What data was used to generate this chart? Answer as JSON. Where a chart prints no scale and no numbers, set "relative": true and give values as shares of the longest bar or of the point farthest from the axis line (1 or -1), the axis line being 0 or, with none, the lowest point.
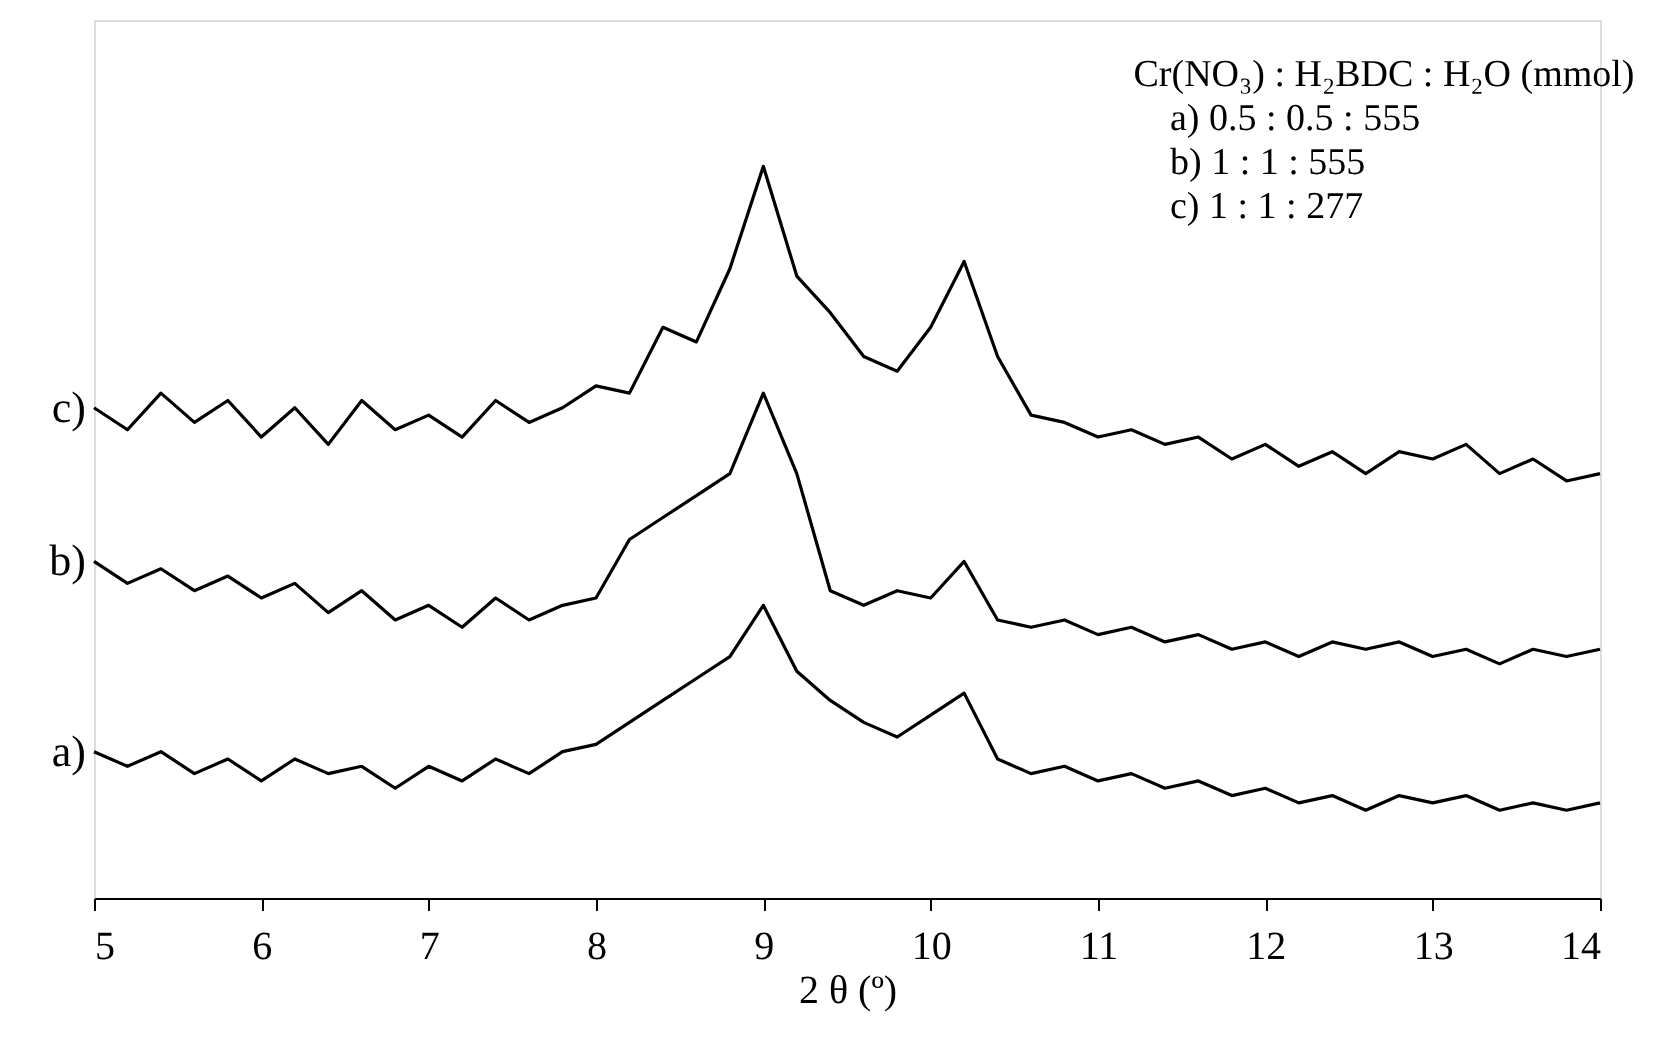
{
  "chart_data": {
    "type": "line",
    "relative": true,
    "xlabel": "2 θ  (º)",
    "xlim": [
      5,
      14
    ],
    "xticks": [
      5,
      6,
      7,
      8,
      9,
      10,
      11,
      12,
      13,
      14
    ],
    "grid": false,
    "marker": "none",
    "line_style": "solid",
    "x": [
      5.0,
      5.2,
      5.4,
      5.6,
      5.8,
      6.0,
      6.2,
      6.4,
      6.6,
      6.8,
      7.0,
      7.2,
      7.4,
      7.6,
      7.8,
      8.0,
      8.2,
      8.4,
      8.6,
      8.8,
      9.0,
      9.2,
      9.4,
      9.6,
      9.8,
      10.0,
      10.2,
      10.4,
      10.6,
      10.8,
      11.0,
      11.2,
      11.4,
      11.6,
      11.8,
      12.0,
      12.2,
      12.4,
      12.6,
      12.8,
      13.0,
      13.2,
      13.4,
      13.6,
      13.8,
      14.0
    ],
    "series": [
      {
        "name": "a)",
        "color": "#000000",
        "values": [
          0.2,
          0.18,
          0.2,
          0.17,
          0.19,
          0.16,
          0.19,
          0.17,
          0.18,
          0.15,
          0.18,
          0.16,
          0.19,
          0.17,
          0.2,
          0.21,
          0.24,
          0.27,
          0.3,
          0.33,
          0.4,
          0.31,
          0.27,
          0.24,
          0.22,
          0.25,
          0.28,
          0.19,
          0.17,
          0.18,
          0.16,
          0.17,
          0.15,
          0.16,
          0.14,
          0.15,
          0.13,
          0.14,
          0.12,
          0.14,
          0.13,
          0.14,
          0.12,
          0.13,
          0.12,
          0.13
        ]
      },
      {
        "name": "b)",
        "color": "#000000",
        "values": [
          0.46,
          0.43,
          0.45,
          0.42,
          0.44,
          0.41,
          0.43,
          0.39,
          0.42,
          0.38,
          0.4,
          0.37,
          0.41,
          0.38,
          0.4,
          0.41,
          0.49,
          0.52,
          0.55,
          0.58,
          0.69,
          0.58,
          0.42,
          0.4,
          0.42,
          0.41,
          0.46,
          0.38,
          0.37,
          0.38,
          0.36,
          0.37,
          0.35,
          0.36,
          0.34,
          0.35,
          0.33,
          0.35,
          0.34,
          0.35,
          0.33,
          0.34,
          0.32,
          0.34,
          0.33,
          0.34
        ]
      },
      {
        "name": "c)",
        "color": "#000000",
        "values": [
          0.67,
          0.64,
          0.69,
          0.65,
          0.68,
          0.63,
          0.67,
          0.62,
          0.68,
          0.64,
          0.66,
          0.63,
          0.68,
          0.65,
          0.67,
          0.7,
          0.69,
          0.78,
          0.76,
          0.86,
          1.0,
          0.85,
          0.8,
          0.74,
          0.72,
          0.78,
          0.87,
          0.74,
          0.66,
          0.65,
          0.63,
          0.64,
          0.62,
          0.63,
          0.6,
          0.62,
          0.59,
          0.61,
          0.58,
          0.61,
          0.6,
          0.62,
          0.58,
          0.6,
          0.57,
          0.58
        ]
      }
    ],
    "annotations": [
      "Cr(NO₃) : H₂BDC : H₂O (mmol)",
      "a) 0.5 : 0.5 : 555",
      "b) 1 : 1 : 555",
      "c) 1 : 1 : 277"
    ]
  }
}
